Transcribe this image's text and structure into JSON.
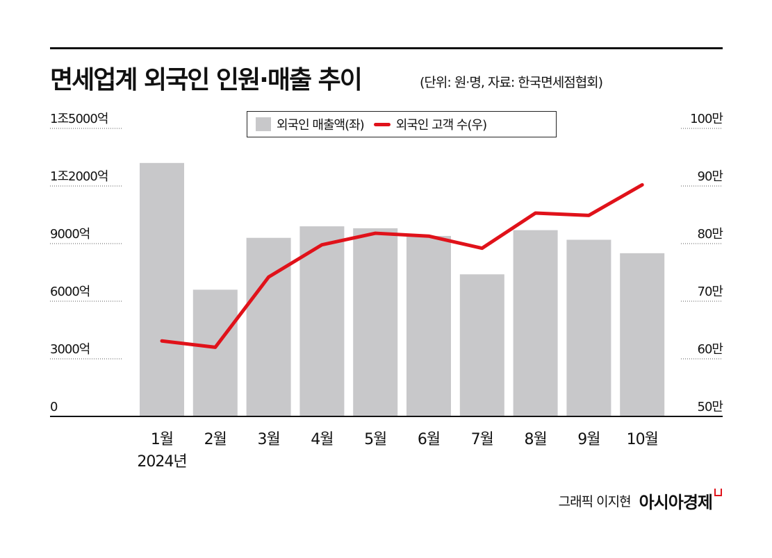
{
  "chart_data": {
    "type": "bar",
    "title": "면세업계 외국인 인원·매출 추이",
    "subtitle": "(단위: 원·명, 자료: 한국면세점협회)",
    "categories": [
      "1월",
      "2월",
      "3월",
      "4월",
      "5월",
      "6월",
      "7월",
      "8월",
      "9월",
      "10월"
    ],
    "year_label": "2024년",
    "series": [
      {
        "name": "외국인 매출액(좌)",
        "type": "bar",
        "axis": "left",
        "unit": "억",
        "color": "#c8c8ca",
        "values": [
          13200,
          6600,
          9300,
          9900,
          9800,
          9400,
          7400,
          9700,
          9200,
          8500
        ]
      },
      {
        "name": "외국인 고객 수(우)",
        "type": "line",
        "axis": "right",
        "unit": "만",
        "color": "#e0121a",
        "values": [
          63.1,
          62.0,
          74.2,
          79.8,
          81.8,
          81.3,
          79.2,
          85.3,
          84.9,
          90.2
        ]
      }
    ],
    "left_axis": {
      "range": [
        0,
        15000
      ],
      "ticks": [
        0,
        3000,
        6000,
        9000,
        12000,
        15000
      ],
      "tick_labels": [
        "0",
        "3000억",
        "6000억",
        "9000억",
        "1조2000억",
        "1조5000억"
      ]
    },
    "right_axis": {
      "range": [
        50,
        100
      ],
      "ticks": [
        50,
        60,
        70,
        80,
        90,
        100
      ],
      "tick_labels": [
        "50만",
        "60만",
        "70만",
        "80만",
        "90만",
        "100만"
      ]
    },
    "grid": "dotted at axis ticks (sides only)",
    "legend": "top-center"
  },
  "footer": {
    "credit": "그래픽 이지현",
    "logo": "아시아경제"
  }
}
